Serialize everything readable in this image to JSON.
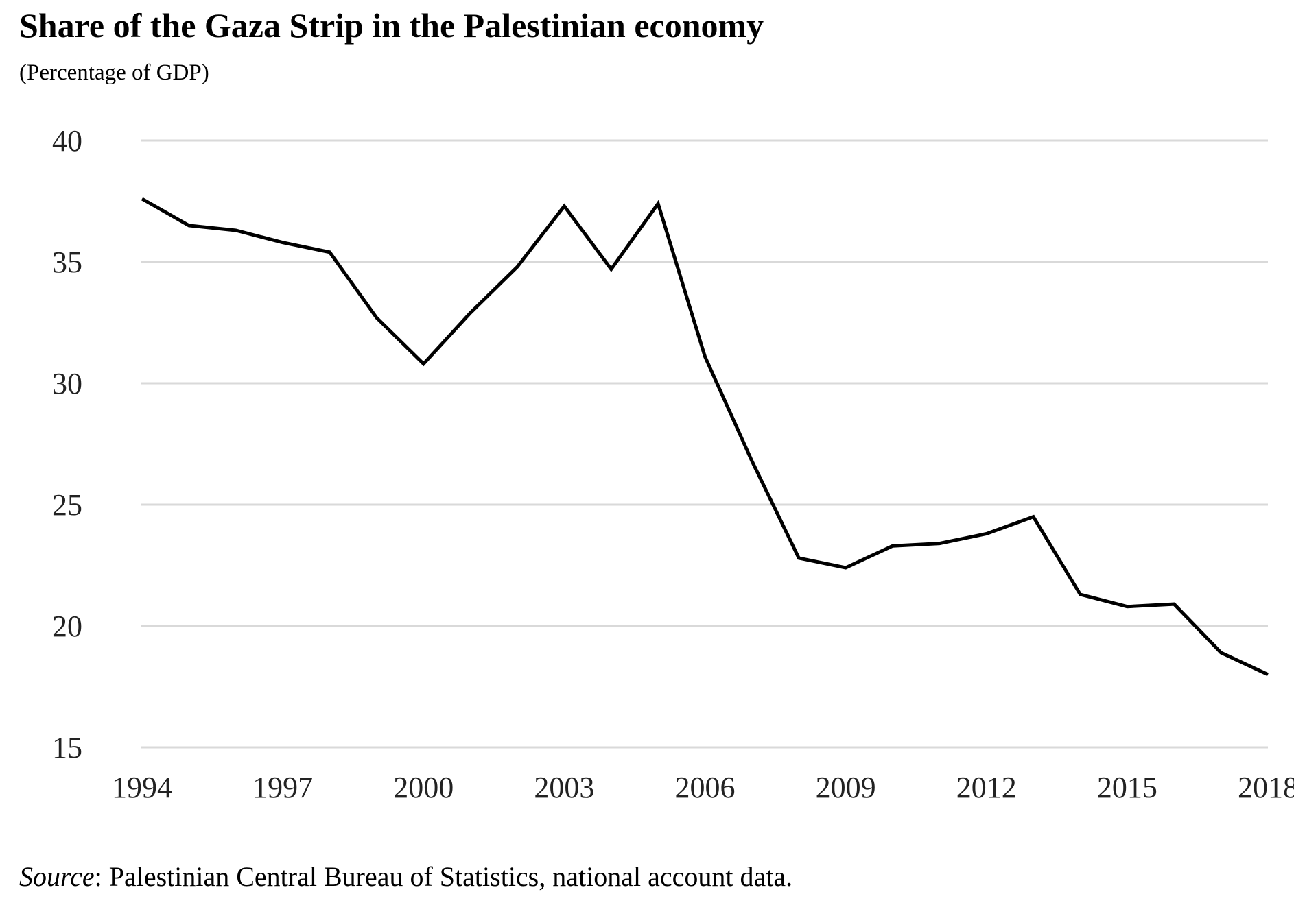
{
  "chart_data": {
    "type": "line",
    "title": "Share of the Gaza Strip in the Palestinian economy",
    "subtitle": "(Percentage of GDP)",
    "xlabel": "",
    "ylabel": "",
    "x": [
      1994,
      1995,
      1996,
      1997,
      1998,
      1999,
      2000,
      2001,
      2002,
      2003,
      2004,
      2005,
      2006,
      2007,
      2008,
      2009,
      2010,
      2011,
      2012,
      2013,
      2014,
      2015,
      2016,
      2017,
      2018
    ],
    "series": [
      {
        "values": [
          37.6,
          36.5,
          36.3,
          35.8,
          35.4,
          32.7,
          30.8,
          32.9,
          34.8,
          37.3,
          34.7,
          37.4,
          31.1,
          26.8,
          22.8,
          22.4,
          23.3,
          23.4,
          23.8,
          24.5,
          21.3,
          20.8,
          20.9,
          18.9,
          18.0
        ]
      }
    ],
    "xticks": [
      "1994",
      "1997",
      "2000",
      "2003",
      "2006",
      "2009",
      "2012",
      "2015",
      "2018"
    ],
    "yticks": [
      "15",
      "20",
      "25",
      "30",
      "35",
      "40"
    ],
    "xlim": [
      1994,
      2018
    ],
    "ylim": [
      15,
      40
    ],
    "grid": "horizontal",
    "legend": "none",
    "line_color": "#000000",
    "grid_color": "#d9d9d9"
  },
  "source": {
    "label": "Source",
    "text": ": Palestinian Central Bureau of Statistics, national account data."
  }
}
